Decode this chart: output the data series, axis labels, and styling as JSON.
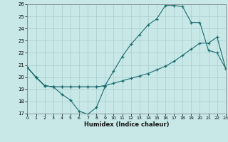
{
  "xlabel": "Humidex (Indice chaleur)",
  "bg_color": "#c8e8e8",
  "grid_color": "#a8cccc",
  "line_color": "#1a6b6b",
  "ylim": [
    17,
    26
  ],
  "xlim": [
    0,
    23
  ],
  "yticks": [
    17,
    18,
    19,
    20,
    21,
    22,
    23,
    24,
    25,
    26
  ],
  "xticks": [
    0,
    1,
    2,
    3,
    4,
    5,
    6,
    7,
    8,
    9,
    10,
    11,
    12,
    13,
    14,
    15,
    16,
    17,
    18,
    19,
    20,
    21,
    22,
    23
  ],
  "series1_x": [
    0,
    1,
    2,
    3,
    4,
    5,
    6,
    7,
    8,
    9
  ],
  "series1_y": [
    20.8,
    20.0,
    19.3,
    19.2,
    18.6,
    18.1,
    17.2,
    16.95,
    17.5,
    19.2
  ],
  "series2_x": [
    0,
    1,
    2,
    3,
    4,
    5,
    6,
    7,
    8,
    9,
    10,
    11,
    12,
    13,
    14,
    15,
    16,
    17,
    18,
    19,
    20,
    21,
    22,
    23
  ],
  "series2_y": [
    20.8,
    20.0,
    19.3,
    19.2,
    19.2,
    19.2,
    19.2,
    19.2,
    19.2,
    19.3,
    19.5,
    19.7,
    19.9,
    20.1,
    20.3,
    20.6,
    20.9,
    21.3,
    21.8,
    22.3,
    22.8,
    22.8,
    23.3,
    20.7
  ],
  "series3_x": [
    0,
    1,
    2,
    3,
    4,
    5,
    6,
    7,
    8,
    9,
    10,
    11,
    12,
    13,
    14,
    15,
    16,
    17,
    18,
    19,
    20,
    21,
    22,
    23
  ],
  "series3_y": [
    20.8,
    20.0,
    19.3,
    19.2,
    19.2,
    19.2,
    19.2,
    19.2,
    19.2,
    19.3,
    20.5,
    21.7,
    22.7,
    23.5,
    24.3,
    24.8,
    25.9,
    25.9,
    25.8,
    24.5,
    24.5,
    22.2,
    22.0,
    20.7
  ]
}
